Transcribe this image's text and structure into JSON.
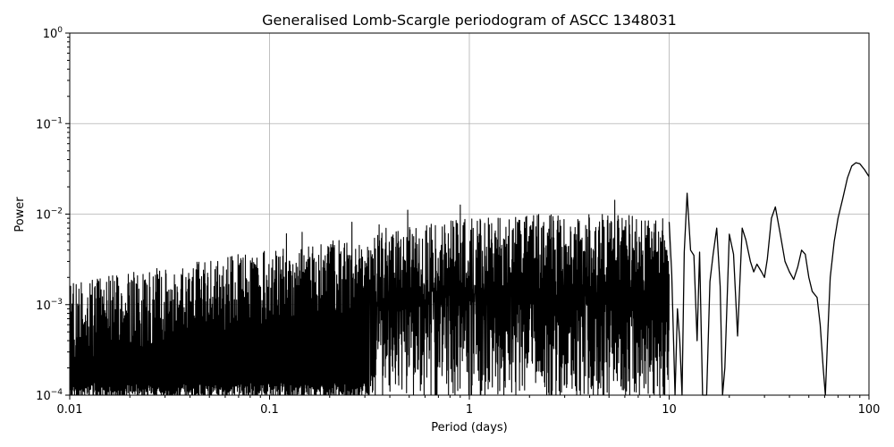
{
  "chart_data": {
    "type": "line",
    "title": "Generalised Lomb-Scargle periodogram of ASCC 1348031",
    "xlabel": "Period (days)",
    "ylabel": "Power",
    "xscale": "log",
    "yscale": "log",
    "xlim": [
      0.01,
      100
    ],
    "ylim": [
      0.0001,
      1
    ],
    "grid": true,
    "line_color": "#000000",
    "x_ticks": [
      {
        "value": 0.01,
        "label": "0.01"
      },
      {
        "value": 0.1,
        "label": "0.1"
      },
      {
        "value": 1,
        "label": "1"
      },
      {
        "value": 10,
        "label": "10"
      },
      {
        "value": 100,
        "label": "100"
      }
    ],
    "y_ticks": [
      {
        "value": 0.0001,
        "base": "10",
        "exp": "−4"
      },
      {
        "value": 0.001,
        "base": "10",
        "exp": "−3"
      },
      {
        "value": 0.01,
        "base": "10",
        "exp": "−2"
      },
      {
        "value": 0.1,
        "base": "10",
        "exp": "−1"
      },
      {
        "value": 1,
        "base": "10",
        "exp": "0"
      }
    ],
    "series": [
      {
        "values": [
          [
            10.0,
            0.0082
          ],
          [
            10.3,
            0.0022
          ],
          [
            10.7,
            0.0001
          ],
          [
            11.0,
            0.0009
          ],
          [
            11.3,
            0.0004
          ],
          [
            11.6,
            0.0001
          ],
          [
            11.9,
            0.0038
          ],
          [
            12.3,
            0.017
          ],
          [
            12.8,
            0.004
          ],
          [
            13.3,
            0.0035
          ],
          [
            13.8,
            0.0004
          ],
          [
            14.2,
            0.0038
          ],
          [
            14.7,
            0.0001
          ],
          [
            15.4,
            0.0001
          ],
          [
            16.0,
            0.0018
          ],
          [
            16.6,
            0.0036
          ],
          [
            17.3,
            0.007
          ],
          [
            18.0,
            0.0016
          ],
          [
            18.5,
            0.0001
          ],
          [
            19.0,
            0.0002
          ],
          [
            20.0,
            0.006
          ],
          [
            21.0,
            0.0036
          ],
          [
            22.0,
            0.00045
          ],
          [
            23.2,
            0.007
          ],
          [
            24.2,
            0.0052
          ],
          [
            25.5,
            0.003
          ],
          [
            26.5,
            0.0023
          ],
          [
            27.5,
            0.0028
          ],
          [
            29.0,
            0.0023
          ],
          [
            30.0,
            0.002
          ],
          [
            31.0,
            0.0032
          ],
          [
            32.5,
            0.009
          ],
          [
            34.0,
            0.012
          ],
          [
            36.0,
            0.006
          ],
          [
            38.0,
            0.003
          ],
          [
            40.0,
            0.0023
          ],
          [
            42.0,
            0.0019
          ],
          [
            44.0,
            0.0026
          ],
          [
            46.0,
            0.004
          ],
          [
            48.0,
            0.0036
          ],
          [
            50.0,
            0.002
          ],
          [
            52.0,
            0.0014
          ],
          [
            55.0,
            0.0012
          ],
          [
            57.0,
            0.0006
          ],
          [
            59.0,
            0.0002
          ],
          [
            60.5,
            0.0001
          ],
          [
            62.0,
            0.0004
          ],
          [
            64.0,
            0.002
          ],
          [
            67.0,
            0.005
          ],
          [
            70.0,
            0.009
          ],
          [
            74.0,
            0.015
          ],
          [
            78.0,
            0.025
          ],
          [
            82.0,
            0.034
          ],
          [
            86.0,
            0.037
          ],
          [
            90.0,
            0.036
          ],
          [
            95.0,
            0.031
          ],
          [
            100.0,
            0.026
          ]
        ]
      }
    ]
  }
}
